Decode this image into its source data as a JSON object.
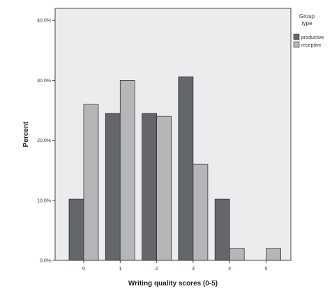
{
  "chart_data": {
    "type": "bar",
    "xlabel": "Writing quality scores (0-5)",
    "ylabel": "Percent",
    "categories": [
      "0",
      "1",
      "2",
      "3",
      "4",
      "5"
    ],
    "y_ticks": [
      "0.0%",
      "10.0%",
      "20.0%",
      "30.0%",
      "40.0%"
    ],
    "ylim": [
      0,
      42
    ],
    "grid": false,
    "legend_title": "Group type",
    "legend_position": "right",
    "series": [
      {
        "name": "productive",
        "color": "#63666a",
        "values": [
          10.2,
          24.5,
          24.5,
          30.6,
          10.2,
          0
        ]
      },
      {
        "name": "receptive",
        "color": "#b5b6b8",
        "values": [
          26.0,
          30.0,
          24.0,
          16.0,
          2.0,
          2.0
        ]
      }
    ]
  }
}
